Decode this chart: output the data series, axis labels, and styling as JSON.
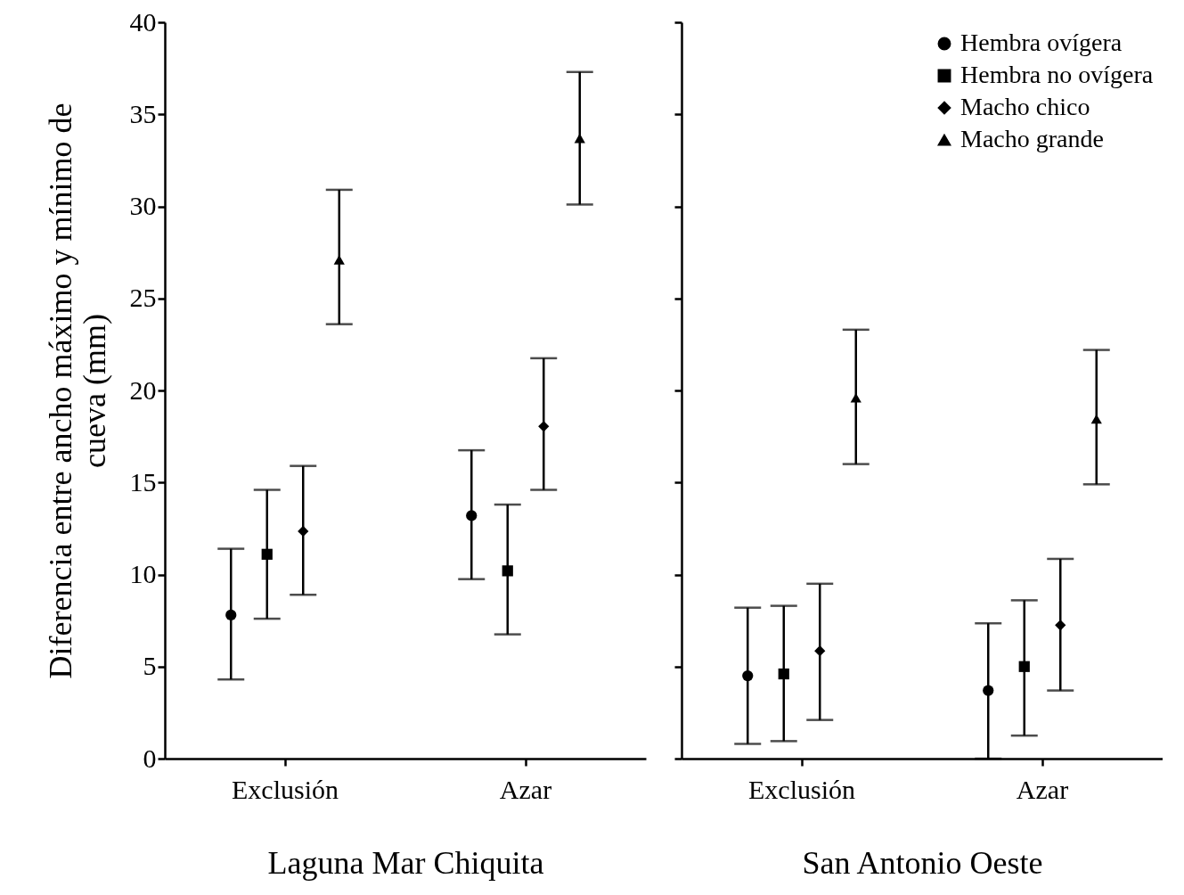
{
  "chart_data": [
    {
      "type": "scatter",
      "xlabel": "Laguna Mar Chiquita",
      "ylabel": "Diferencia entre ancho máximo y mínimo de cueva (mm)",
      "categories": [
        "Exclusión",
        "Azar"
      ],
      "ylim": [
        0,
        40
      ],
      "yticks": [
        0,
        5,
        10,
        15,
        20,
        25,
        30,
        35,
        40
      ],
      "grid": false,
      "legend": false,
      "series": [
        {
          "color": "#000000",
          "marker": "circle",
          "values": [
            7.8,
            13.2
          ],
          "errors": [
            [
              4.3,
              11.4
            ],
            [
              9.75,
              16.75
            ]
          ]
        },
        {
          "color": "#000000",
          "marker": "square",
          "values": [
            11.1,
            10.2
          ],
          "errors": [
            [
              7.6,
              14.6
            ],
            [
              6.75,
              13.8
            ]
          ]
        },
        {
          "color": "#000000",
          "marker": "diamond",
          "values": [
            12.35,
            18.05
          ],
          "errors": [
            [
              8.9,
              15.9
            ],
            [
              14.6,
              21.75
            ]
          ]
        },
        {
          "color": "#000000",
          "marker": "triangle",
          "values": [
            27.1,
            33.7
          ],
          "errors": [
            [
              23.6,
              30.9
            ],
            [
              30.1,
              37.3
            ]
          ]
        }
      ]
    },
    {
      "type": "scatter",
      "xlabel": "San Antonio Oeste",
      "categories": [
        "Exclusión",
        "Azar"
      ],
      "ylim": [
        0,
        40
      ],
      "yticks": [
        0,
        5,
        10,
        15,
        20,
        25,
        30,
        35,
        40
      ],
      "tick_labels": "x",
      "grid": false,
      "legend": "top right",
      "series": [
        {
          "name": "Hembra ovígera",
          "color": "#000000",
          "marker": "circle",
          "values": [
            4.5,
            3.7
          ],
          "errors": [
            [
              0.8,
              8.2
            ],
            [
              0,
              7.35
            ]
          ]
        },
        {
          "name": "Hembra no ovígera",
          "color": "#000000",
          "marker": "square",
          "values": [
            4.6,
            5.0
          ],
          "errors": [
            [
              0.95,
              8.3
            ],
            [
              1.25,
              8.6
            ]
          ]
        },
        {
          "name": "Macho chico",
          "color": "#000000",
          "marker": "diamond",
          "values": [
            5.85,
            7.25
          ],
          "errors": [
            [
              2.1,
              9.5
            ],
            [
              3.7,
              10.85
            ]
          ]
        },
        {
          "name": "Macho grande",
          "color": "#000000",
          "marker": "triangle",
          "values": [
            19.6,
            18.45
          ],
          "errors": [
            [
              16.0,
              23.3
            ],
            [
              14.9,
              22.2
            ]
          ]
        }
      ]
    }
  ]
}
